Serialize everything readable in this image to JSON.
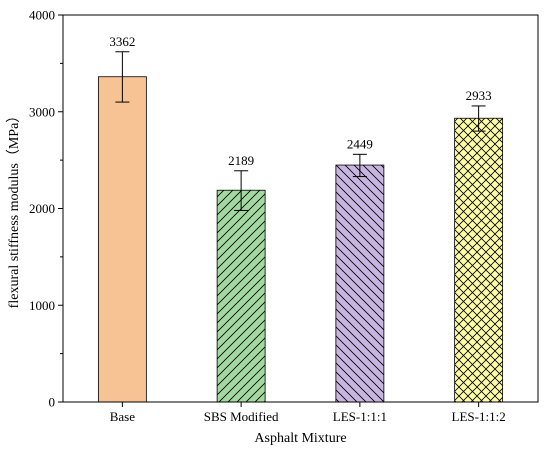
{
  "chart_data": {
    "type": "bar",
    "xlabel": "Asphalt Mixture",
    "ylabel": "flexural stiffness modulus（MPa）",
    "ylim": [
      0,
      4000
    ],
    "yticks": [
      0,
      1000,
      2000,
      3000,
      4000
    ],
    "ytick_labels": [
      "0",
      "1000",
      "2000",
      "3000",
      "4000"
    ],
    "grid": false,
    "categories": [
      "Base",
      "SBS Modified",
      "LES-1:1:1",
      "LES-1:1:2"
    ],
    "values": [
      3362,
      2189,
      2449,
      2933
    ],
    "value_labels": [
      "3362",
      "2189",
      "2449",
      "2933"
    ],
    "error_low": [
      3100,
      1980,
      2330,
      2800
    ],
    "error_high": [
      3620,
      2390,
      2560,
      3060
    ],
    "bar_fills": [
      "#F8C394",
      "#A3D9A0",
      "#C8B4E0",
      "#FFFFA6"
    ],
    "bar_patterns": [
      "solid",
      "diagonal-up",
      "diagonal-down",
      "crosshatch"
    ]
  }
}
